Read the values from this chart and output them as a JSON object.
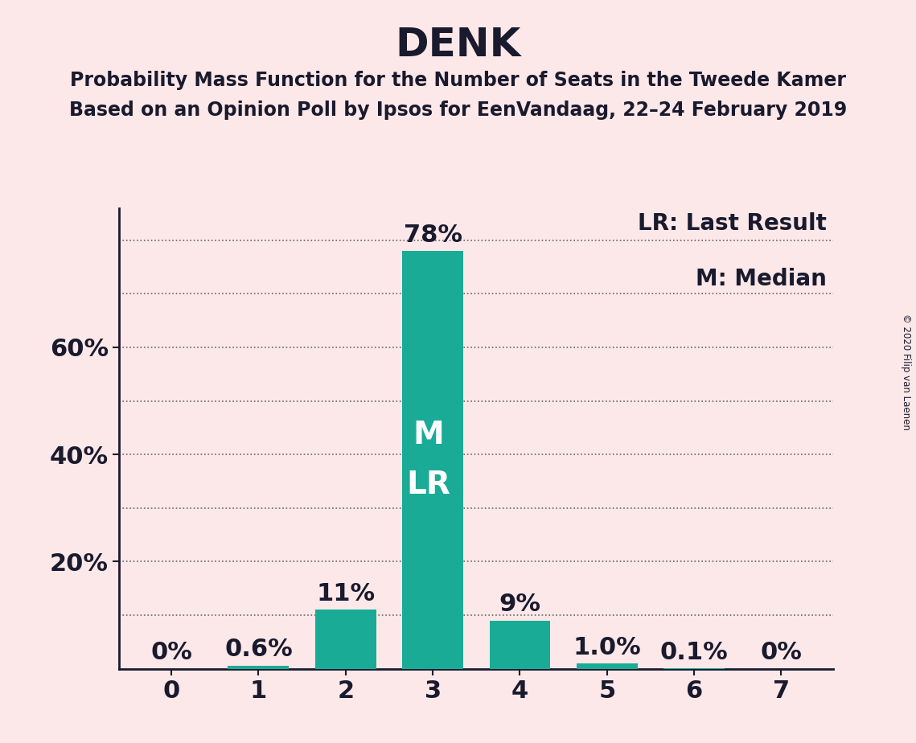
{
  "title": "DENK",
  "subtitle1": "Probability Mass Function for the Number of Seats in the Tweede Kamer",
  "subtitle2": "Based on an Opinion Poll by Ipsos for EenVandaag, 22–24 February 2019",
  "copyright": "© 2020 Filip van Laenen",
  "legend_lr": "LR: Last Result",
  "legend_m": "M: Median",
  "seats": [
    0,
    1,
    2,
    3,
    4,
    5,
    6,
    7
  ],
  "probabilities": [
    0.0,
    0.006,
    0.11,
    0.78,
    0.09,
    0.01,
    0.001,
    0.0
  ],
  "labels": [
    "0%",
    "0.6%",
    "11%",
    "78%",
    "9%",
    "1.0%",
    "0.1%",
    "0%"
  ],
  "bar_color": "#1aab97",
  "background_color": "#fce8e8",
  "median_seat": 3,
  "lr_seat": 3,
  "median_label": "M",
  "lr_label": "LR",
  "text_color": "#1a1a2e",
  "grid_color": "#666666",
  "title_fontsize": 36,
  "subtitle_fontsize": 17,
  "tick_fontsize": 22,
  "legend_fontsize": 20,
  "bar_label_fontsize": 22,
  "inside_label_fontsize": 28
}
